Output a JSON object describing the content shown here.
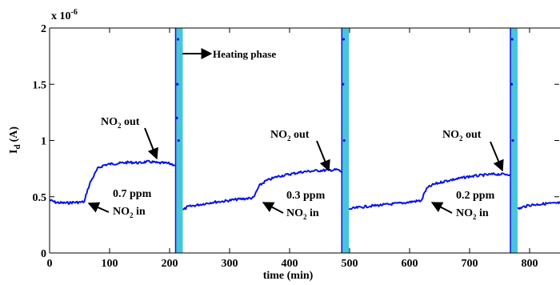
{
  "chart_data": {
    "type": "line",
    "xlabel": "time (min)",
    "ylabel_main": "I",
    "ylabel_sub": "d",
    "ylabel_unit": "(A)",
    "y_multiplier": "x 10",
    "y_multiplier_exp": "-6",
    "xlim": [
      0,
      860
    ],
    "ylim": [
      0,
      2e-06
    ],
    "x_ticks": [
      0,
      100,
      200,
      300,
      400,
      500,
      600,
      700,
      800
    ],
    "x_tick_labels": [
      "0",
      "100",
      "200",
      "300",
      "400",
      "500",
      "600",
      "700",
      "800"
    ],
    "y_ticks": [
      0,
      5e-07,
      1e-06,
      1.5e-06,
      2e-06
    ],
    "y_tick_labels": [
      "0",
      "0.5",
      "1",
      "1.5",
      "2"
    ],
    "series_color": "#0a14e6",
    "heating_color": "#4ac4d8",
    "heating_phases": [
      {
        "x_start": 210,
        "x_end": 222
      },
      {
        "x_start": 487,
        "x_end": 499
      },
      {
        "x_start": 768,
        "x_end": 780
      }
    ],
    "series": [
      {
        "x": [
          0,
          10,
          20,
          30,
          40,
          50,
          58,
          62,
          68,
          75,
          80,
          90,
          100,
          110,
          120,
          130,
          140,
          150,
          160,
          170,
          180,
          190,
          200,
          210
        ],
        "y": [
          4.7e-07,
          4.5e-07,
          4.45e-07,
          4.45e-07,
          4.5e-07,
          4.5e-07,
          4.55e-07,
          5.4e-07,
          6.3e-07,
          7e-07,
          7.5e-07,
          7.8e-07,
          7.9e-07,
          7.95e-07,
          8e-07,
          8.05e-07,
          8.05e-07,
          8e-07,
          8.1e-07,
          8.1e-07,
          8e-07,
          8e-07,
          7.95e-07,
          7.8e-07
        ]
      },
      {
        "x": [
          222,
          230,
          250,
          270,
          290,
          310,
          330,
          340,
          345,
          350,
          360,
          380,
          400,
          420,
          440,
          460,
          480,
          487
        ],
        "y": [
          3.8e-07,
          4.1e-07,
          4.3e-07,
          4.5e-07,
          4.6e-07,
          4.75e-07,
          4.85e-07,
          4.9e-07,
          5.5e-07,
          6e-07,
          6.4e-07,
          6.8e-07,
          7e-07,
          7.2e-07,
          7.3e-07,
          7.35e-07,
          7.4e-07,
          7.2e-07
        ]
      },
      {
        "x": [
          499,
          510,
          530,
          550,
          570,
          590,
          610,
          620,
          625,
          630,
          640,
          660,
          680,
          700,
          720,
          740,
          760,
          768
        ],
        "y": [
          3.9e-07,
          4e-07,
          4.15e-07,
          4.25e-07,
          4.35e-07,
          4.45e-07,
          4.6e-07,
          4.65e-07,
          5.4e-07,
          5.8e-07,
          6.1e-07,
          6.4e-07,
          6.6e-07,
          6.8e-07,
          6.9e-07,
          7e-07,
          7e-07,
          7e-07
        ]
      },
      {
        "x": [
          780,
          790,
          800,
          810,
          820,
          830,
          840,
          850,
          860
        ],
        "y": [
          3.9e-07,
          4.1e-07,
          4.25e-07,
          4.3e-07,
          4.35e-07,
          4.4e-07,
          4.4e-07,
          4.45e-07,
          4.5e-07
        ]
      }
    ],
    "heating_spike_points": [
      {
        "x": 214,
        "y": 1.9e-06
      },
      {
        "x": 213,
        "y": 1.5e-06
      },
      {
        "x": 215,
        "y": 1e-06
      },
      {
        "x": 212,
        "y": 1.2e-06
      },
      {
        "x": 490,
        "y": 1.9e-06
      },
      {
        "x": 489,
        "y": 1.5e-06
      },
      {
        "x": 491,
        "y": 1e-06
      },
      {
        "x": 771,
        "y": 1.9e-06
      },
      {
        "x": 770,
        "y": 1.5e-06
      },
      {
        "x": 772,
        "y": 1e-06
      }
    ],
    "annotations": {
      "heating": "Heating phase",
      "out1": {
        "pre": "NO",
        "sub": "2",
        "post": " out"
      },
      "out2": {
        "pre": "NO",
        "sub": "2",
        "post": " out"
      },
      "out3": {
        "pre": "NO",
        "sub": "2",
        "post": " out"
      },
      "conc1": "0.7 ppm",
      "conc2": "0.3 ppm",
      "conc3": "0.2 ppm",
      "in1": {
        "pre": "NO",
        "sub": "2",
        "post": " in"
      },
      "in2": {
        "pre": "NO",
        "sub": "2",
        "post": " in"
      },
      "in3": {
        "pre": "NO",
        "sub": "2",
        "post": " in"
      }
    }
  }
}
